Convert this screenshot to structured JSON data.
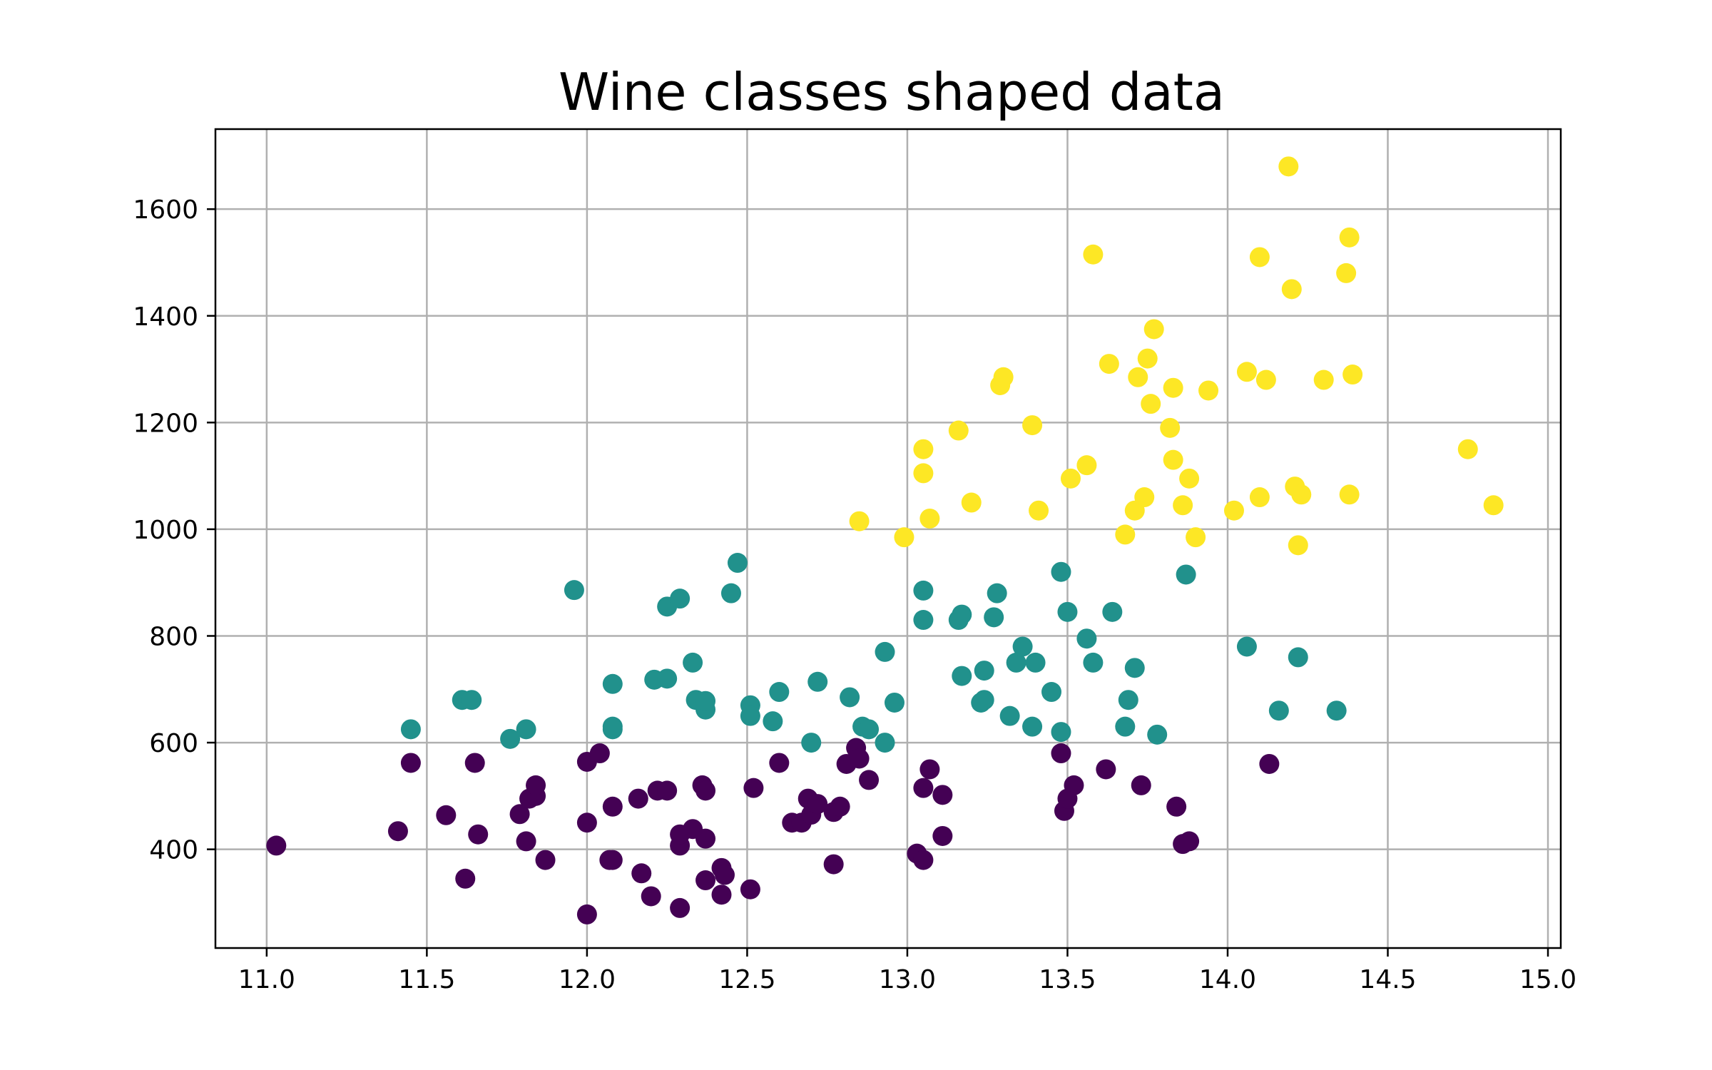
{
  "chart_data": {
    "type": "scatter",
    "title": "Wine classes shaped data",
    "xlabel": "",
    "ylabel": "",
    "xlim": [
      10.84,
      15.04
    ],
    "ylim": [
      215,
      1750
    ],
    "grid": true,
    "x_ticks": [
      11.0,
      11.5,
      12.0,
      12.5,
      13.0,
      13.5,
      14.0,
      14.5,
      15.0
    ],
    "x_tick_labels": [
      "11.0",
      "11.5",
      "12.0",
      "12.5",
      "13.0",
      "13.5",
      "14.0",
      "14.5",
      "15.0"
    ],
    "y_ticks": [
      400,
      600,
      800,
      1000,
      1200,
      1400,
      1600
    ],
    "y_tick_labels": [
      "400",
      "600",
      "800",
      "1000",
      "1200",
      "1400",
      "1600"
    ],
    "series": [
      {
        "color": "#440154",
        "points": [
          [
            11.03,
            407
          ],
          [
            11.41,
            434
          ],
          [
            11.45,
            562
          ],
          [
            11.56,
            464
          ],
          [
            11.62,
            345
          ],
          [
            11.65,
            562
          ],
          [
            11.66,
            428
          ],
          [
            11.79,
            466
          ],
          [
            11.81,
            415
          ],
          [
            11.82,
            495
          ],
          [
            11.84,
            500
          ],
          [
            11.84,
            520
          ],
          [
            11.87,
            380
          ],
          [
            12.0,
            278
          ],
          [
            12.0,
            450
          ],
          [
            12.0,
            564
          ],
          [
            12.04,
            580
          ],
          [
            12.07,
            380
          ],
          [
            12.08,
            380
          ],
          [
            12.08,
            480
          ],
          [
            12.17,
            355
          ],
          [
            12.2,
            312
          ],
          [
            12.22,
            510
          ],
          [
            12.25,
            510
          ],
          [
            12.16,
            495
          ],
          [
            12.29,
            290
          ],
          [
            12.29,
            407
          ],
          [
            12.29,
            428
          ],
          [
            12.33,
            438
          ],
          [
            12.36,
            520
          ],
          [
            12.37,
            510
          ],
          [
            12.37,
            420
          ],
          [
            12.37,
            342
          ],
          [
            12.42,
            315
          ],
          [
            12.42,
            365
          ],
          [
            12.43,
            352
          ],
          [
            12.51,
            325
          ],
          [
            12.52,
            515
          ],
          [
            12.6,
            562
          ],
          [
            12.64,
            450
          ],
          [
            12.67,
            450
          ],
          [
            12.69,
            495
          ],
          [
            12.7,
            465
          ],
          [
            12.72,
            485
          ],
          [
            12.77,
            372
          ],
          [
            12.77,
            470
          ],
          [
            12.79,
            480
          ],
          [
            12.81,
            560
          ],
          [
            12.84,
            590
          ],
          [
            12.85,
            570
          ],
          [
            12.88,
            530
          ],
          [
            13.03,
            392
          ],
          [
            13.05,
            380
          ],
          [
            13.05,
            515
          ],
          [
            13.07,
            550
          ],
          [
            13.11,
            502
          ],
          [
            13.11,
            425
          ],
          [
            13.48,
            580
          ],
          [
            13.49,
            472
          ],
          [
            13.5,
            495
          ],
          [
            13.52,
            520
          ],
          [
            13.62,
            550
          ],
          [
            13.73,
            520
          ],
          [
            13.84,
            480
          ],
          [
            13.86,
            410
          ],
          [
            13.88,
            415
          ],
          [
            14.13,
            560
          ]
        ]
      },
      {
        "color": "#21918c",
        "points": [
          [
            11.45,
            625
          ],
          [
            11.61,
            680
          ],
          [
            11.64,
            680
          ],
          [
            11.76,
            607
          ],
          [
            11.81,
            625
          ],
          [
            11.96,
            886
          ],
          [
            12.08,
            710
          ],
          [
            12.08,
            625
          ],
          [
            12.08,
            630
          ],
          [
            12.21,
            718
          ],
          [
            12.25,
            855
          ],
          [
            12.25,
            720
          ],
          [
            12.29,
            870
          ],
          [
            12.33,
            750
          ],
          [
            12.34,
            680
          ],
          [
            12.37,
            662
          ],
          [
            12.37,
            678
          ],
          [
            12.45,
            880
          ],
          [
            12.47,
            937
          ],
          [
            12.51,
            670
          ],
          [
            12.51,
            650
          ],
          [
            12.58,
            640
          ],
          [
            12.6,
            695
          ],
          [
            12.7,
            600
          ],
          [
            12.72,
            714
          ],
          [
            12.82,
            685
          ],
          [
            12.86,
            630
          ],
          [
            12.88,
            625
          ],
          [
            12.93,
            770
          ],
          [
            12.93,
            600
          ],
          [
            12.96,
            675
          ],
          [
            13.05,
            885
          ],
          [
            13.05,
            830
          ],
          [
            13.16,
            830
          ],
          [
            13.17,
            840
          ],
          [
            13.17,
            725
          ],
          [
            13.23,
            675
          ],
          [
            13.24,
            680
          ],
          [
            13.24,
            735
          ],
          [
            13.27,
            835
          ],
          [
            13.28,
            880
          ],
          [
            13.32,
            650
          ],
          [
            13.34,
            750
          ],
          [
            13.36,
            780
          ],
          [
            13.39,
            630
          ],
          [
            13.4,
            750
          ],
          [
            13.45,
            695
          ],
          [
            13.48,
            620
          ],
          [
            13.48,
            920
          ],
          [
            13.5,
            845
          ],
          [
            13.56,
            795
          ],
          [
            13.58,
            750
          ],
          [
            13.64,
            845
          ],
          [
            13.68,
            630
          ],
          [
            13.69,
            680
          ],
          [
            13.71,
            740
          ],
          [
            13.78,
            615
          ],
          [
            13.87,
            915
          ],
          [
            14.06,
            780
          ],
          [
            14.16,
            660
          ],
          [
            14.22,
            760
          ],
          [
            14.34,
            660
          ]
        ]
      },
      {
        "color": "#fde725",
        "points": [
          [
            12.85,
            1015
          ],
          [
            12.99,
            985
          ],
          [
            13.05,
            1150
          ],
          [
            13.05,
            1105
          ],
          [
            13.07,
            1020
          ],
          [
            13.16,
            1185
          ],
          [
            13.2,
            1050
          ],
          [
            13.29,
            1270
          ],
          [
            13.3,
            1285
          ],
          [
            13.39,
            1195
          ],
          [
            13.41,
            1035
          ],
          [
            13.51,
            1095
          ],
          [
            13.56,
            1120
          ],
          [
            13.58,
            1515
          ],
          [
            13.63,
            1310
          ],
          [
            13.68,
            990
          ],
          [
            13.71,
            1035
          ],
          [
            13.72,
            1285
          ],
          [
            13.74,
            1060
          ],
          [
            13.75,
            1320
          ],
          [
            13.76,
            1235
          ],
          [
            13.77,
            1375
          ],
          [
            13.82,
            1190
          ],
          [
            13.83,
            1265
          ],
          [
            13.83,
            1130
          ],
          [
            13.86,
            1045
          ],
          [
            13.88,
            1095
          ],
          [
            13.9,
            985
          ],
          [
            13.94,
            1260
          ],
          [
            14.02,
            1035
          ],
          [
            14.06,
            1295
          ],
          [
            14.1,
            1510
          ],
          [
            14.1,
            1060
          ],
          [
            14.12,
            1280
          ],
          [
            14.19,
            1680
          ],
          [
            14.2,
            1450
          ],
          [
            14.21,
            1080
          ],
          [
            14.22,
            970
          ],
          [
            14.23,
            1065
          ],
          [
            14.3,
            1280
          ],
          [
            14.37,
            1480
          ],
          [
            14.38,
            1547
          ],
          [
            14.38,
            1065
          ],
          [
            14.39,
            1290
          ],
          [
            14.75,
            1150
          ],
          [
            14.83,
            1045
          ]
        ]
      }
    ]
  }
}
